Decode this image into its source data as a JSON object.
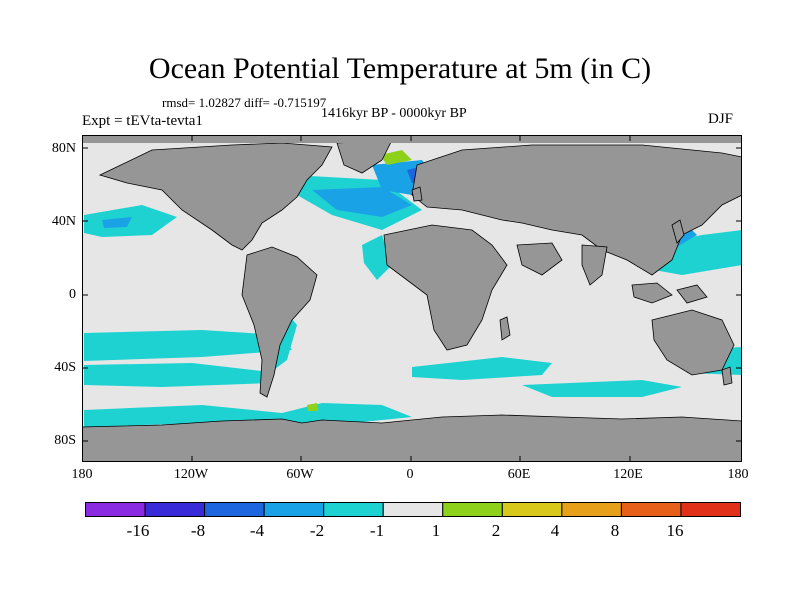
{
  "figure": {
    "title": "Ocean Potential Temperature at 5m (in C)",
    "stats": "rmsd= 1.02827 diff= -0.715197",
    "period": "1416kyr BP - 0000kyr BP",
    "experiment": "Expt = tEVta-tevta1",
    "season": "DJF"
  },
  "axes": {
    "lat_labels": [
      "80N",
      "40N",
      "0",
      "40S",
      "80S"
    ],
    "lon_labels": [
      "180",
      "120W",
      "60W",
      "0",
      "60E",
      "120E",
      "180"
    ]
  },
  "legend": {
    "labels": [
      "-16",
      "-8",
      "-4",
      "-2",
      "-1",
      "1",
      "2",
      "4",
      "8",
      "16"
    ],
    "colors": [
      "#8a2be2",
      "#3a2bd8",
      "#1e66e0",
      "#1aa2e6",
      "#1ed2d2",
      "#e6e6e6",
      "#8ed11a",
      "#d8c81a",
      "#e6a01a",
      "#e6601a",
      "#e0301a"
    ]
  },
  "colors": {
    "land": "#969696",
    "ocean_neutral": "#e6e6e6",
    "cyan": "#1ed2d2",
    "light_blue": "#1aa2e6",
    "blue": "#1e66e0",
    "green": "#8ed11a"
  }
}
